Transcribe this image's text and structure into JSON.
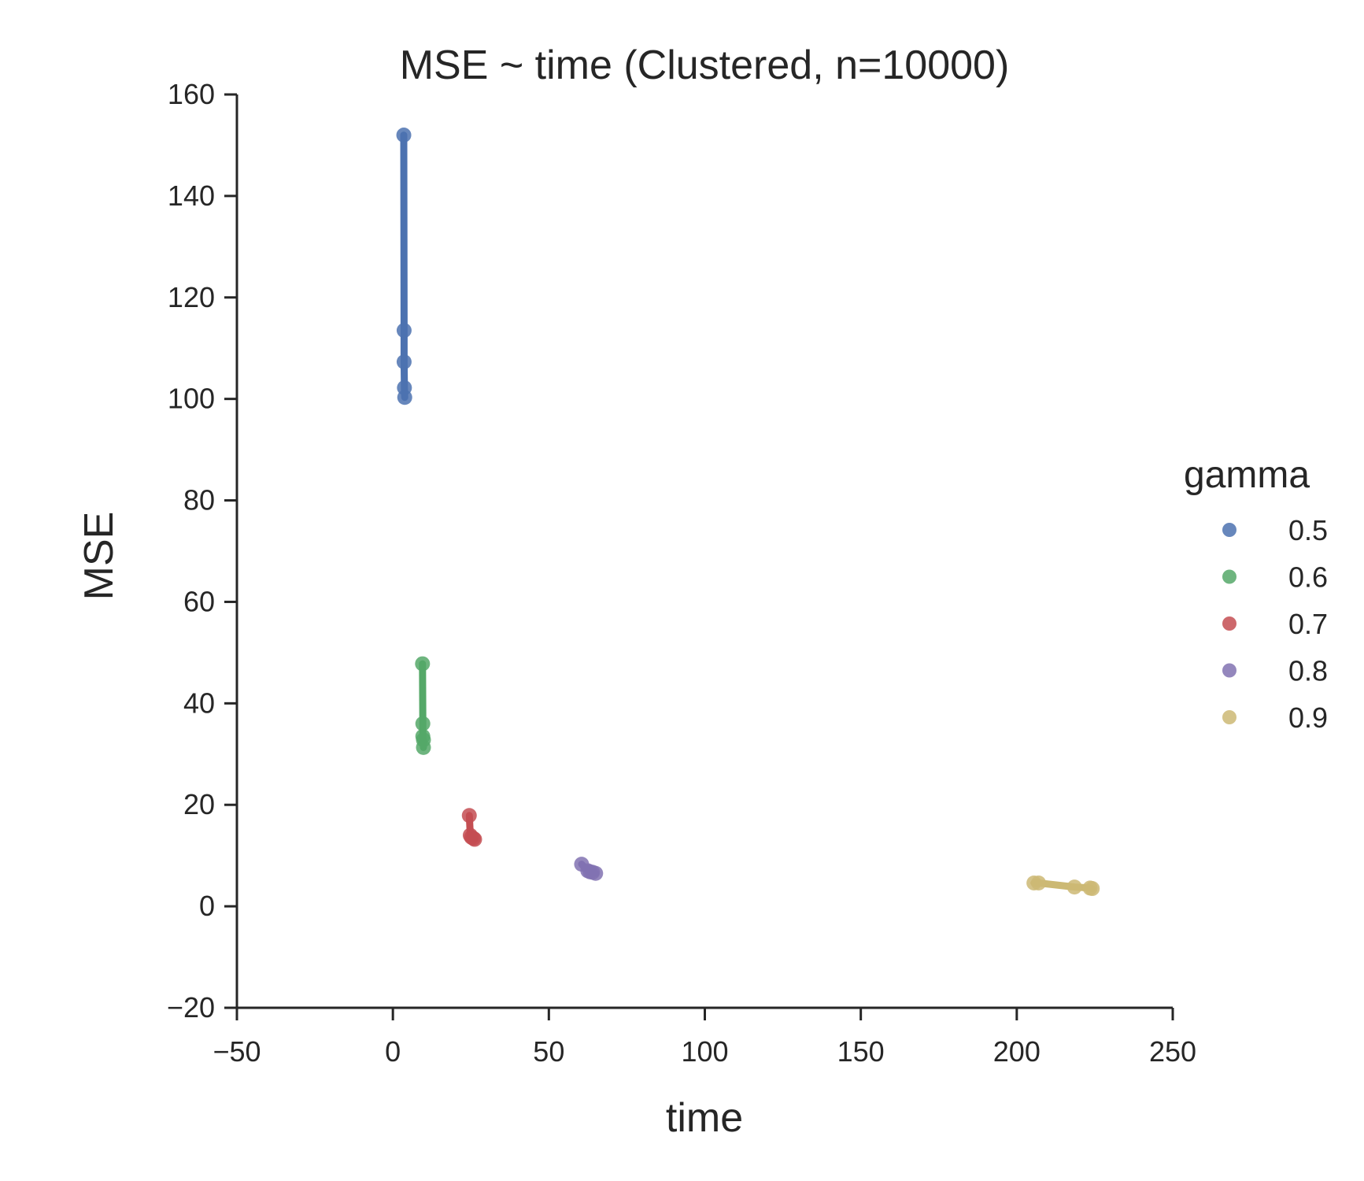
{
  "chart_data": {
    "type": "line",
    "title": "MSE ~ time (Clustered, n=10000)",
    "xlabel": "time",
    "ylabel": "MSE",
    "xlim": [
      -50,
      250
    ],
    "ylim": [
      -20,
      160
    ],
    "xticks": [
      -50,
      0,
      50,
      100,
      150,
      200,
      250
    ],
    "yticks": [
      -20,
      0,
      20,
      40,
      60,
      80,
      100,
      120,
      140,
      160
    ],
    "xtick_labels": [
      "−50",
      "0",
      "50",
      "100",
      "150",
      "200",
      "250"
    ],
    "ytick_labels": [
      "−20",
      "0",
      "20",
      "40",
      "60",
      "80",
      "100",
      "120",
      "140",
      "160"
    ],
    "grid": false,
    "markers": true,
    "legend": {
      "title": "gamma",
      "placement": "right"
    },
    "series": [
      {
        "name": "0.5",
        "color": "#4c72b0",
        "points": [
          {
            "x": 3.5,
            "y": 152.0
          },
          {
            "x": 3.6,
            "y": 113.5
          },
          {
            "x": 3.6,
            "y": 107.3
          },
          {
            "x": 3.7,
            "y": 102.2
          },
          {
            "x": 3.8,
            "y": 100.3
          }
        ]
      },
      {
        "name": "0.6",
        "color": "#55a868",
        "points": [
          {
            "x": 9.5,
            "y": 47.8
          },
          {
            "x": 9.6,
            "y": 36.0
          },
          {
            "x": 9.6,
            "y": 33.5
          },
          {
            "x": 9.8,
            "y": 32.8
          },
          {
            "x": 9.8,
            "y": 31.3
          }
        ]
      },
      {
        "name": "0.7",
        "color": "#c44e52",
        "points": [
          {
            "x": 24.5,
            "y": 17.9
          },
          {
            "x": 24.8,
            "y": 14.0
          },
          {
            "x": 25.2,
            "y": 13.6
          },
          {
            "x": 25.8,
            "y": 13.4
          },
          {
            "x": 26.2,
            "y": 13.2
          }
        ]
      },
      {
        "name": "0.8",
        "color": "#8172b2",
        "points": [
          {
            "x": 60.5,
            "y": 8.3
          },
          {
            "x": 62.5,
            "y": 7.0
          },
          {
            "x": 63.2,
            "y": 6.8
          },
          {
            "x": 64.0,
            "y": 6.7
          },
          {
            "x": 65.0,
            "y": 6.5
          }
        ]
      },
      {
        "name": "0.9",
        "color": "#ccb974",
        "points": [
          {
            "x": 205.5,
            "y": 4.6
          },
          {
            "x": 207.0,
            "y": 4.6
          },
          {
            "x": 218.5,
            "y": 3.8
          },
          {
            "x": 223.5,
            "y": 3.6
          },
          {
            "x": 224.2,
            "y": 3.5
          }
        ]
      }
    ]
  }
}
